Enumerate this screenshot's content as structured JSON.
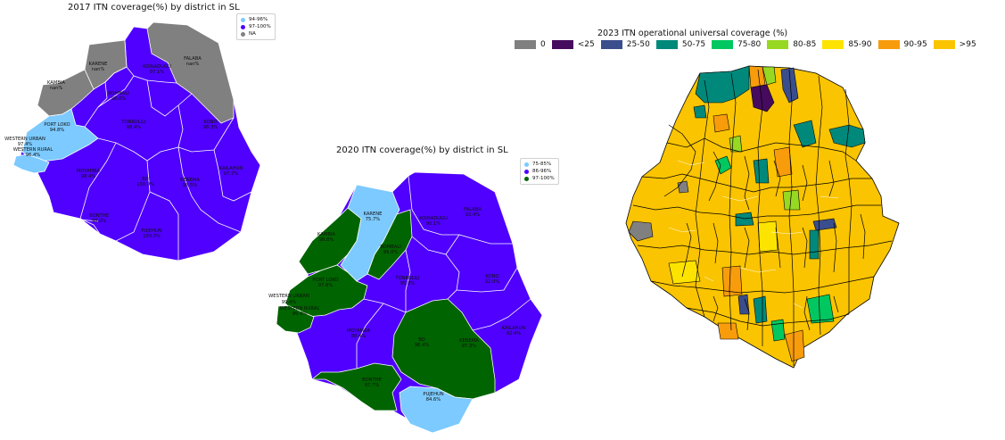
{
  "colors": {
    "light_blue": "#7ccaff",
    "purple": "#4f00ff",
    "green": "#006400",
    "grey": "#808080",
    "c0": "#808080",
    "c_lt25": "#460b5e",
    "c25_50": "#3a4d8c",
    "c50_75": "#00897b",
    "c75_80": "#00c760",
    "c80_85": "#97d823",
    "c85_90": "#fde400",
    "c90_95": "#f89c0c",
    "c_gt95": "#fac400"
  },
  "map2017": {
    "title": "2017 ITN coverage(%) by district in SL",
    "legend": [
      {
        "label": "94-96%",
        "color": "#7ccaff"
      },
      {
        "label": "97-100%",
        "color": "#4f00ff"
      },
      {
        "label": "NA",
        "color": "#808080"
      }
    ],
    "districts": {
      "kambia": "KAMBIA",
      "kambia_val": "nan%",
      "karene": "KARENE",
      "karene_val": "nan%",
      "falaba": "FALABA",
      "falaba_val": "nan%",
      "koinadugu": "KOINADUGU",
      "koinadugu_val": "97.1%",
      "bombali": "BOMBALI",
      "bombali_val": "98.0%",
      "tonkolili": "TONKOLILI",
      "tonkolili_val": "98.4%",
      "kono": "KONO",
      "kono_val": "98.3%",
      "portloko": "PORT LOKO",
      "portloko_val": "94.8%",
      "wurban": "WESTERN URBAN",
      "wurban_val": "97.4%",
      "wrural": "WESTERN RURAL",
      "wrural_val": "96.4%",
      "moyamba": "MOYAMBA",
      "moyamba_val": "98.4%",
      "bo": "BO",
      "bo_val": "100.0%",
      "kenema": "KENEMA",
      "kenema_val": "98.5%",
      "kailahun": "KAILAHUN",
      "kailahun_val": "97.7%",
      "bonthe": "BONTHE",
      "bonthe_val": "98.0%",
      "pujehun": "PUJEHUN",
      "pujehun_val": "100.0%"
    }
  },
  "map2020": {
    "title": "2020 ITN coverage(%) by district in SL",
    "legend": [
      {
        "label": "75-85%",
        "color": "#7ccaff"
      },
      {
        "label": "86-96%",
        "color": "#4f00ff"
      },
      {
        "label": "97-100%",
        "color": "#006400"
      }
    ],
    "districts": {
      "karene": "KARENE",
      "karene_val": "75.7%",
      "falaba": "FALABA",
      "falaba_val": "92.4%",
      "koinadugu": "KOINADUGU",
      "koinadugu_val": "90.1%",
      "kambia": "KAMBIA",
      "kambia_val": "98.8%",
      "bombali": "BOMBALI",
      "bombali_val": "99.0%",
      "portloko": "PORT LOKO",
      "portloko_val": "97.8%",
      "tonkolili": "TONKOLILI",
      "tonkolili_val": "95.8%",
      "kono": "KONO",
      "kono_val": "92.0%",
      "wurban": "WESTERN URBAN",
      "wurban_val": "99.4%",
      "wrural": "WESTERN RURAL",
      "wrural_val": "99.4%",
      "moyamba": "MOYAMBA",
      "moyamba_val": "88.4%",
      "bo": "BO",
      "bo_val": "98.4%",
      "kenema": "KENEMA",
      "kenema_val": "97.3%",
      "kailahun": "KAILAHUN",
      "kailahun_val": "92.4%",
      "bonthe": "BONTHE",
      "bonthe_val": "97.7%",
      "pujehun": "PUJEHUN",
      "pujehun_val": "84.6%"
    }
  },
  "map2023": {
    "title": "2023 ITN operational universal coverage (%)",
    "legend": [
      {
        "label": "0",
        "color": "#808080"
      },
      {
        "label": "<25",
        "color": "#460b5e"
      },
      {
        "label": "25-50",
        "color": "#3a4d8c"
      },
      {
        "label": "50-75",
        "color": "#00897b"
      },
      {
        "label": "75-80",
        "color": "#00c760"
      },
      {
        "label": "80-85",
        "color": "#97d823"
      },
      {
        "label": "85-90",
        "color": "#fde400"
      },
      {
        "label": "90-95",
        "color": "#f89c0c"
      },
      {
        "label": ">95",
        "color": "#fac400"
      }
    ]
  }
}
